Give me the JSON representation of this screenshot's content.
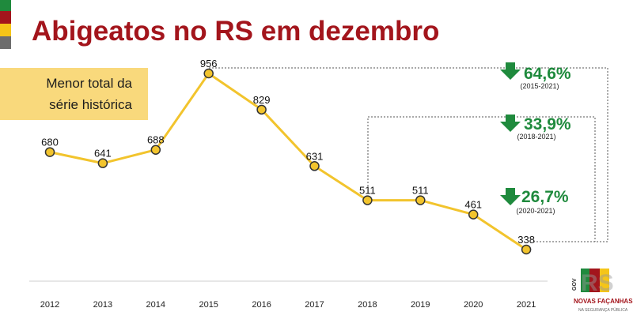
{
  "title": "Abigeatos no RS em dezembro",
  "callout": {
    "line1": "Menor total da",
    "line2": "série histórica"
  },
  "brand_colors": [
    "#1f8a3d",
    "#a3151c",
    "#f5c518",
    "#6d6d6d"
  ],
  "chart_data": {
    "type": "line",
    "categories": [
      "2012",
      "2013",
      "2014",
      "2015",
      "2016",
      "2017",
      "2018",
      "2019",
      "2020",
      "2021"
    ],
    "values": [
      680,
      641,
      688,
      956,
      829,
      631,
      511,
      511,
      461,
      338
    ],
    "line_color": "#f2c42d",
    "grid": false,
    "annotations": [
      {
        "pct": "64,6%",
        "range": "(2015-2021)",
        "from": "2015",
        "to": "2021"
      },
      {
        "pct": "33,9%",
        "range": "(2018-2021)",
        "from": "2018",
        "to": "2021"
      },
      {
        "pct": "26,7%",
        "range": "(2020-2021)",
        "from": "2020",
        "to": "2021"
      }
    ]
  },
  "logo": {
    "gov": "GOV",
    "rs": "RS",
    "tagline": "NOVAS FAÇANHAS",
    "sub": "NA SEGURANÇA PÚBLICA"
  }
}
